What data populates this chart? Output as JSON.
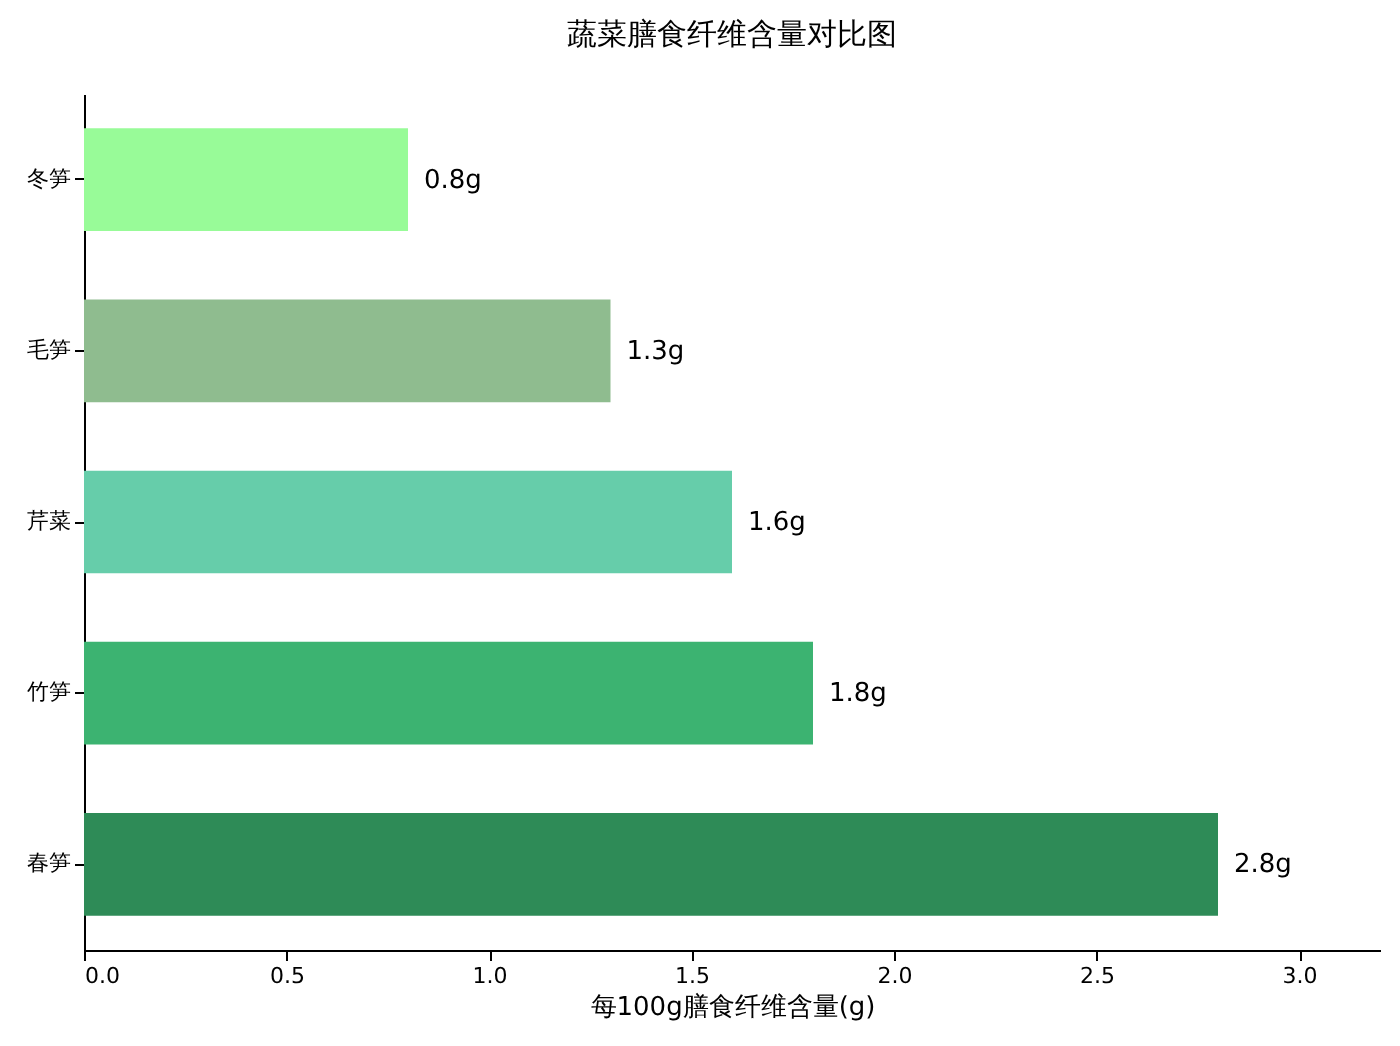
{
  "chart_data": {
    "type": "bar",
    "orientation": "horizontal",
    "title": "蔬菜膳食纤维含量对比图",
    "xlabel": "每100g膳食纤维含量(g)",
    "categories": [
      "冬笋",
      "毛笋",
      "芹菜",
      "竹笋",
      "春笋"
    ],
    "values": [
      0.8,
      1.3,
      1.6,
      1.8,
      2.8
    ],
    "colors": [
      "#98fb98",
      "#8fbc8f",
      "#66cdaa",
      "#3cb371",
      "#2e8b57"
    ],
    "value_labels": [
      "0.8g",
      "1.3g",
      "1.6g",
      "1.8g",
      "2.8g"
    ],
    "xlim": [
      0,
      3.2
    ],
    "xticks": [
      {
        "value": 0,
        "label": "0.0"
      },
      0.5,
      {
        "value": 1,
        "label": "1.0"
      },
      1.5,
      {
        "value": 2,
        "label": "2.0"
      },
      2.5,
      {
        "value": 3,
        "label": "3.0"
      }
    ],
    "grid": false
  }
}
